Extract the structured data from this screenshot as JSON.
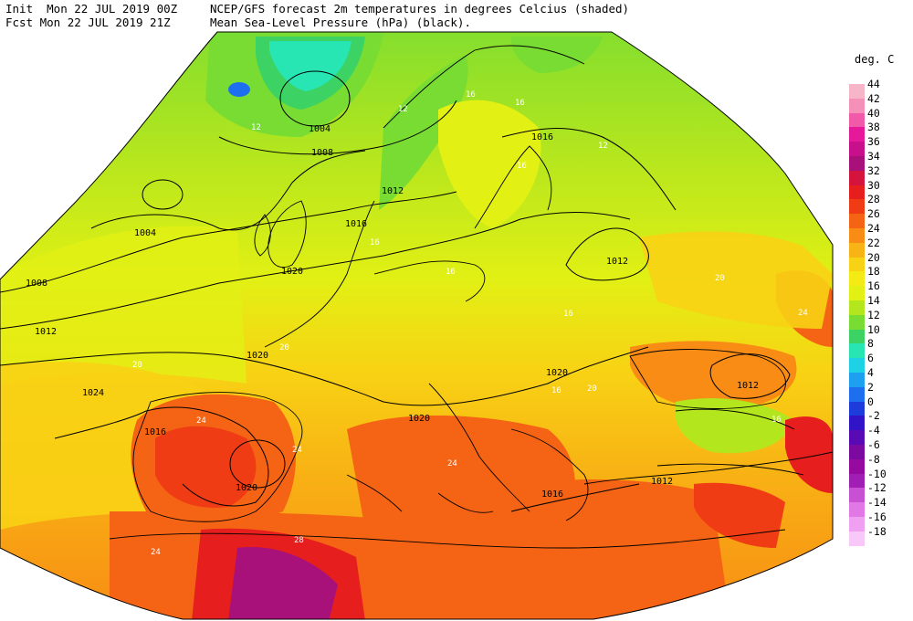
{
  "header": {
    "init_label": "Init  Mon 22 JUL 2019 00Z",
    "fcst_label": "Fcst Mon 22 JUL 2019 21Z",
    "title_line1": "NCEP/GFS forecast 2m temperatures in degrees Celcius (shaded)",
    "title_line2": "Mean Sea-Level Pressure (hPa) (black)."
  },
  "legend": {
    "unit": "deg. C",
    "levels": [
      {
        "label": "44",
        "color": "#f7b5c8"
      },
      {
        "label": "42",
        "color": "#f590b8"
      },
      {
        "label": "40",
        "color": "#f05aa8"
      },
      {
        "label": "38",
        "color": "#e6199a"
      },
      {
        "label": "36",
        "color": "#c8108c"
      },
      {
        "label": "34",
        "color": "#a8107a"
      },
      {
        "label": "32",
        "color": "#d4143c"
      },
      {
        "label": "30",
        "color": "#e61e1e"
      },
      {
        "label": "28",
        "color": "#f03c14"
      },
      {
        "label": "26",
        "color": "#f56414"
      },
      {
        "label": "24",
        "color": "#f88c14"
      },
      {
        "label": "22",
        "color": "#f8b414"
      },
      {
        "label": "20",
        "color": "#f8d214"
      },
      {
        "label": "18",
        "color": "#f5eb14"
      },
      {
        "label": "16",
        "color": "#e2f014"
      },
      {
        "label": "14",
        "color": "#b4e61e"
      },
      {
        "label": "12",
        "color": "#78dc32"
      },
      {
        "label": "10",
        "color": "#3cd264"
      },
      {
        "label": "8",
        "color": "#28e6b4"
      },
      {
        "label": "6",
        "color": "#1ed2e6"
      },
      {
        "label": "4",
        "color": "#1ea0f0"
      },
      {
        "label": "2",
        "color": "#1e6ef0"
      },
      {
        "label": "0",
        "color": "#1e3cdc"
      },
      {
        "label": "-2",
        "color": "#3214c8"
      },
      {
        "label": "-4",
        "color": "#5a0ab4"
      },
      {
        "label": "-6",
        "color": "#7d0aa0"
      },
      {
        "label": "-8",
        "color": "#960aa0"
      },
      {
        "label": "-10",
        "color": "#a01eb4"
      },
      {
        "label": "-12",
        "color": "#c850d2"
      },
      {
        "label": "-14",
        "color": "#e178e6"
      },
      {
        "label": "-16",
        "color": "#f0a0f0"
      },
      {
        "label": "-18",
        "color": "#f8c8f8"
      }
    ]
  },
  "isobar_labels": [
    "1004",
    "1008",
    "1004",
    "1012",
    "1016",
    "1008",
    "1020",
    "1012",
    "1016",
    "1012",
    "1020",
    "1020",
    "1016",
    "1020",
    "1020",
    "1012",
    "1012",
    "1016",
    "1024"
  ],
  "temp_labels": [
    "12",
    "16",
    "16",
    "12",
    "16",
    "16",
    "20",
    "20",
    "24",
    "24",
    "24",
    "28",
    "24",
    "16",
    "12",
    "16",
    "20",
    "16",
    "16",
    "20",
    "24"
  ]
}
